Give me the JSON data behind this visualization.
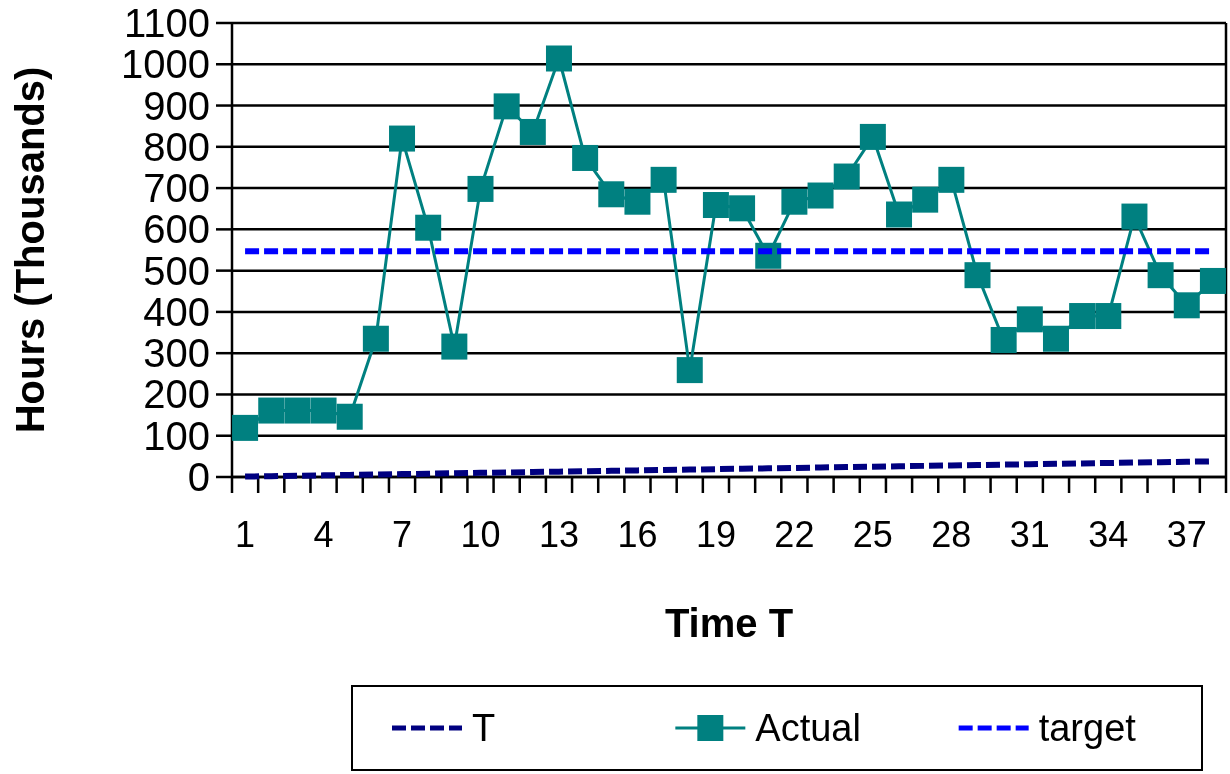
{
  "chart_data": {
    "type": "line",
    "xlabel": "Time T",
    "ylabel": "Hours (Thousands)",
    "categories": [
      "1",
      null,
      null,
      "4",
      null,
      null,
      "7",
      null,
      null,
      "10",
      null,
      null,
      "13",
      null,
      null,
      "16",
      null,
      null,
      "19",
      null,
      null,
      "22",
      null,
      null,
      "25",
      null,
      null,
      "28",
      null,
      null,
      "31",
      null,
      null,
      "34",
      null,
      null,
      "37",
      null
    ],
    "series": [
      {
        "name": "T",
        "color": "#000080",
        "line_style": "dashed",
        "marker": "none",
        "values": [
          1,
          2,
          3,
          4,
          5,
          6,
          7,
          8,
          9,
          10,
          11,
          12,
          13,
          14,
          15,
          16,
          17,
          18,
          19,
          20,
          21,
          22,
          23,
          24,
          25,
          26,
          27,
          28,
          29,
          30,
          31,
          32,
          33,
          34,
          35,
          36,
          37,
          38
        ]
      },
      {
        "name": "Actual",
        "color": "#008080",
        "line_style": "solid",
        "marker": "square",
        "values": [
          119,
          161,
          161,
          161,
          146,
          335,
          820,
          604,
          316,
          698,
          898,
          836,
          1014,
          773,
          685,
          667,
          720,
          259,
          659,
          651,
          536,
          667,
          682,
          728,
          824,
          636,
          672,
          720,
          489,
          332,
          382,
          335,
          390,
          390,
          631,
          489,
          416,
          475
        ]
      },
      {
        "name": "target",
        "color": "#0000ff",
        "line_style": "dashed",
        "marker": "none",
        "values": [
          547,
          547,
          547,
          547,
          547,
          547,
          547,
          547,
          547,
          547,
          547,
          547,
          547,
          547,
          547,
          547,
          547,
          547,
          547,
          547,
          547,
          547,
          547,
          547,
          547,
          547,
          547,
          547,
          547,
          547,
          547,
          547,
          547,
          547,
          547,
          547,
          547,
          547
        ]
      }
    ],
    "ylim": [
      0,
      1100
    ],
    "yticks": [
      0,
      100,
      200,
      300,
      400,
      500,
      600,
      700,
      800,
      900,
      1000,
      1100
    ],
    "grid": "y",
    "legend": "bottom"
  }
}
